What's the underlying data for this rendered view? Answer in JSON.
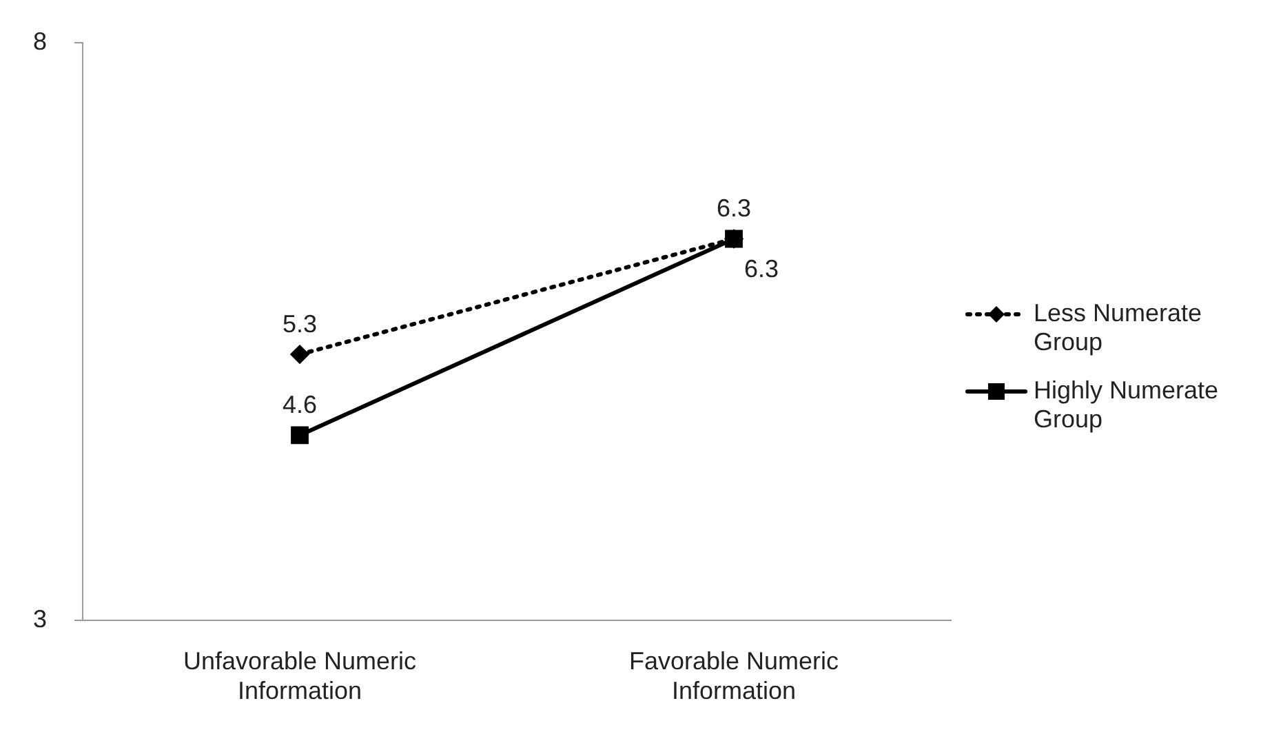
{
  "chart_data": {
    "type": "line",
    "categories": [
      "Unfavorable Numeric Information",
      "Favorable Numeric Information"
    ],
    "series": [
      {
        "name": "Less Numerate Group",
        "color": "#000000",
        "values": [
          5.3,
          6.3
        ],
        "marker": "diamond",
        "line_style": "dotted"
      },
      {
        "name": "Highly Numerate Group",
        "color": "#000000",
        "values": [
          4.6,
          6.3
        ],
        "marker": "square",
        "line_style": "solid"
      }
    ],
    "ylim": [
      3,
      8
    ],
    "yticks": [
      3,
      8
    ],
    "grid": false,
    "legend": "right",
    "data_labels": true
  }
}
